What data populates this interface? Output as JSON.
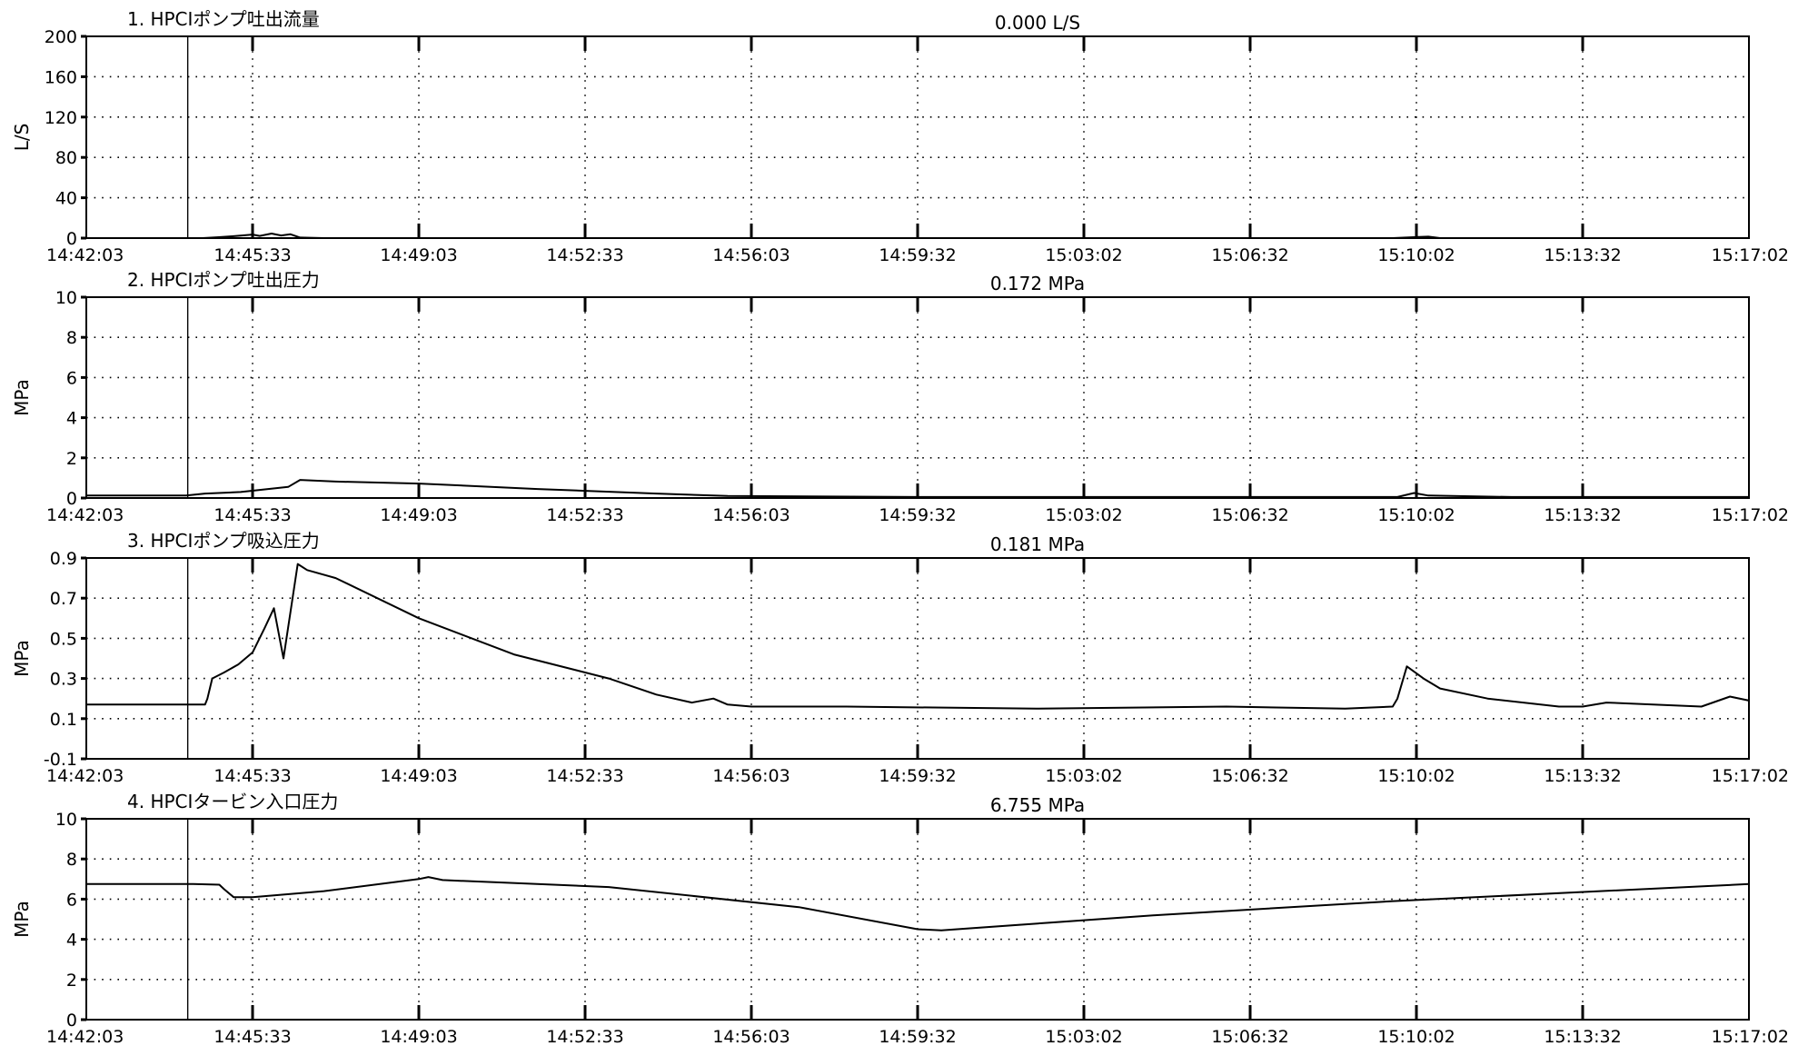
{
  "chart_data": [
    {
      "type": "line",
      "title": "1.  HPCIポンプ吐出流量",
      "value_readout": "0.000 L/S",
      "ylabel": "L/S",
      "ylim": [
        0,
        200
      ],
      "yticks": [
        "0",
        "40",
        "80",
        "120",
        "160",
        "200"
      ],
      "x_tick_labels": [
        "14:42:03",
        "14:45:33",
        "14:49:03",
        "14:52:33",
        "14:56:03",
        "14:59:32",
        "15:03:02",
        "15:06:32",
        "15:10:02",
        "15:13:32",
        "15:17:02"
      ],
      "x_minutes": [
        0,
        3.5,
        4.9,
        5.5,
        6.0,
        6.5,
        7.0,
        7.3,
        7.8,
        8.2,
        8.6,
        9.0,
        10,
        20,
        30,
        40,
        55,
        56,
        56.5,
        57,
        70
      ],
      "series": [
        {
          "values": [
            0,
            0,
            0,
            0.8,
            1.5,
            2.4,
            3.5,
            2.2,
            4.5,
            2.6,
            3.8,
            0.5,
            0,
            0,
            0,
            0,
            0,
            1.0,
            1.4,
            0,
            0
          ]
        }
      ],
      "grid": true
    },
    {
      "type": "line",
      "title": "2.  HPCIポンプ吐出圧力",
      "value_readout": "0.172  MPa",
      "ylabel": "MPa",
      "ylim": [
        0,
        10
      ],
      "yticks": [
        "0",
        "2",
        "4",
        "6",
        "8",
        "10"
      ],
      "x_tick_labels": [
        "14:42:03",
        "14:45:33",
        "14:49:03",
        "14:52:33",
        "14:56:03",
        "14:59:32",
        "15:03:02",
        "15:06:32",
        "15:10:02",
        "15:13:32",
        "15:17:02"
      ],
      "x_minutes": [
        0,
        4.2,
        5.0,
        6.5,
        8.5,
        9.0,
        10.5,
        14,
        19,
        24,
        27,
        35,
        45,
        55.2,
        55.9,
        56.5,
        60,
        68,
        70
      ],
      "series": [
        {
          "values": [
            0.12,
            0.12,
            0.22,
            0.3,
            0.55,
            0.9,
            0.82,
            0.72,
            0.45,
            0.22,
            0.1,
            0.05,
            0.05,
            0.05,
            0.25,
            0.12,
            0.05,
            0.05,
            0.05
          ]
        }
      ],
      "grid": true
    },
    {
      "type": "line",
      "title": "3.  HPCIポンプ吸込圧力",
      "value_readout": "0.181  MPa",
      "ylabel": "MPa",
      "ylim": [
        -0.1,
        0.9
      ],
      "yticks": [
        "-0.1",
        "0.1",
        "0.3",
        "0.5",
        "0.7",
        "0.9"
      ],
      "x_tick_labels": [
        "14:42:03",
        "14:45:33",
        "14:49:03",
        "14:52:33",
        "14:56:03",
        "14:59:32",
        "15:03:02",
        "15:06:32",
        "15:10:02",
        "15:13:32",
        "15:17:02"
      ],
      "x_minutes": [
        0,
        4.5,
        5.0,
        5.1,
        5.3,
        5.8,
        6.4,
        7.0,
        7.5,
        7.9,
        8.3,
        8.9,
        9.3,
        10.5,
        14,
        18,
        22,
        24,
        25.5,
        26.4,
        27,
        28,
        32,
        40,
        48,
        53,
        55,
        55.2,
        55.6,
        56.3,
        57,
        59,
        62,
        63,
        64,
        68,
        69.2,
        70
      ],
      "series": [
        {
          "values": [
            0.17,
            0.17,
            0.17,
            0.2,
            0.3,
            0.33,
            0.37,
            0.43,
            0.55,
            0.65,
            0.4,
            0.87,
            0.84,
            0.8,
            0.6,
            0.42,
            0.3,
            0.22,
            0.18,
            0.2,
            0.17,
            0.16,
            0.16,
            0.15,
            0.16,
            0.15,
            0.16,
            0.2,
            0.36,
            0.3,
            0.25,
            0.2,
            0.16,
            0.16,
            0.18,
            0.16,
            0.21,
            0.19
          ]
        }
      ],
      "grid": true
    },
    {
      "type": "line",
      "title": "4.  HPCIタービン入口圧力",
      "value_readout": "6.755  MPa",
      "ylabel": "MPa",
      "ylim": [
        0,
        10
      ],
      "yticks": [
        "0",
        "2",
        "4",
        "6",
        "8",
        "10"
      ],
      "x_tick_labels": [
        "14:42:03",
        "14:45:33",
        "14:49:03",
        "14:52:33",
        "14:56:03",
        "14:59:32",
        "15:03:02",
        "15:06:32",
        "15:10:02",
        "15:13:32",
        "15:17:02"
      ],
      "x_minutes": [
        0,
        4.5,
        5.6,
        5.8,
        6.2,
        7.0,
        10,
        14,
        14.4,
        15,
        22,
        30,
        35,
        36,
        45,
        55,
        70
      ],
      "series": [
        {
          "values": [
            6.75,
            6.75,
            6.72,
            6.5,
            6.1,
            6.1,
            6.4,
            7.0,
            7.1,
            6.95,
            6.6,
            5.6,
            4.5,
            4.45,
            5.2,
            5.9,
            6.75
          ]
        }
      ],
      "grid": true
    }
  ]
}
